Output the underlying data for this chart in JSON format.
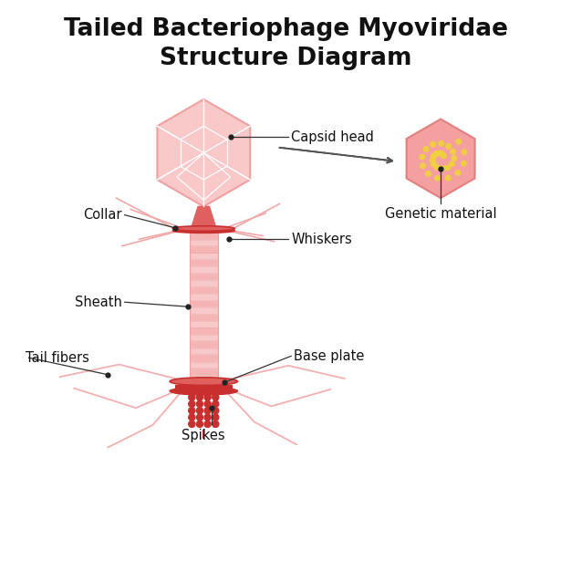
{
  "title": "Tailed Bacteriophage Myoviridae\nStructure Diagram",
  "title_fontsize": 19,
  "title_fontweight": "bold",
  "bg_color": "#ffffff",
  "pink_light": "#f9c8c8",
  "pink_mid": "#f0a0a0",
  "pink_dark": "#e06060",
  "red_dark": "#c83030",
  "fiber_color": "#f4b0b0",
  "gm_hex_fill": "#f4a0a0",
  "gm_hex_edge": "#e08080",
  "dot_yellow": "#f0d040",
  "labels": {
    "capsid_head": "Capsid head",
    "collar": "Collar",
    "whiskers": "Whiskers",
    "sheath": "Sheath",
    "base_plate": "Base plate",
    "tail_fibers": "Tail fibers",
    "spikes": "Spikes",
    "genetic_material": "Genetic material"
  },
  "label_fontsize": 10.5,
  "line_color": "#222222"
}
